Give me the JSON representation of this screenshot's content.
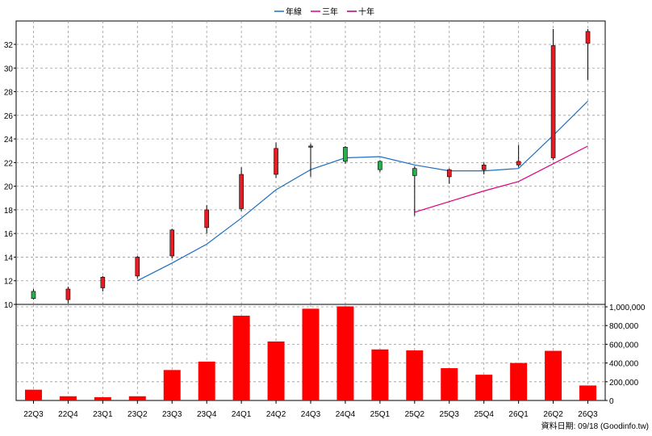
{
  "legend": [
    {
      "name": "年線",
      "color": "#1e6fbf"
    },
    {
      "name": "三年",
      "color": "#e0007a"
    },
    {
      "name": "十年",
      "color": "#b0006f"
    }
  ],
  "footer": {
    "source": "資料日期: 09/18  (Goodinfo.tw)"
  },
  "chart_data": [
    {
      "type": "candlestick",
      "categories": [
        "22Q3",
        "22Q4",
        "23Q1",
        "23Q2",
        "23Q3",
        "23Q4",
        "24Q1",
        "24Q2",
        "24Q3",
        "24Q4",
        "25Q1",
        "25Q2",
        "25Q3",
        "25Q4",
        "26Q1",
        "26Q2",
        "26Q3"
      ],
      "ylim": [
        10,
        33.5
      ],
      "yticks": [
        10,
        12,
        14,
        16,
        18,
        20,
        22,
        24,
        26,
        28,
        30,
        32
      ],
      "grid": true,
      "candles": [
        {
          "open": 10.5,
          "close": 11.1,
          "high": 11.3,
          "low": 10.4
        },
        {
          "open": 11.3,
          "close": 10.4,
          "high": 11.5,
          "low": 10.1
        },
        {
          "open": 12.3,
          "close": 11.4,
          "high": 12.4,
          "low": 11.1
        },
        {
          "open": 14.0,
          "close": 12.4,
          "high": 14.1,
          "low": 12.2
        },
        {
          "open": 16.3,
          "close": 14.1,
          "high": 16.4,
          "low": 13.9
        },
        {
          "open": 18.0,
          "close": 16.5,
          "high": 18.4,
          "low": 16.0
        },
        {
          "open": 21.0,
          "close": 18.1,
          "high": 21.6,
          "low": 17.9
        },
        {
          "open": 23.2,
          "close": 21.0,
          "high": 23.7,
          "low": 20.7
        },
        {
          "open": 23.4,
          "close": 23.3,
          "high": 23.6,
          "low": 20.8
        },
        {
          "open": 22.1,
          "close": 23.3,
          "high": 23.4,
          "low": 21.9
        },
        {
          "open": 21.4,
          "close": 22.1,
          "high": 22.2,
          "low": 21.2
        },
        {
          "open": 20.9,
          "close": 21.5,
          "high": 21.7,
          "low": 17.5
        },
        {
          "open": 21.4,
          "close": 20.8,
          "high": 21.5,
          "low": 20.2
        },
        {
          "open": 21.8,
          "close": 21.4,
          "high": 22.0,
          "low": 21.0
        },
        {
          "open": 22.1,
          "close": 21.8,
          "high": 23.5,
          "low": 21.6
        },
        {
          "open": 31.9,
          "close": 22.4,
          "high": 33.3,
          "low": 22.2
        },
        {
          "open": 33.1,
          "close": 32.1,
          "high": 33.3,
          "low": 29.0
        }
      ],
      "series": [
        {
          "name": "年線",
          "color": "#1e6fbf",
          "values": [
            null,
            null,
            null,
            12.0,
            13.5,
            15.1,
            17.3,
            19.7,
            21.4,
            22.4,
            22.5,
            21.8,
            21.3,
            21.3,
            21.5,
            24.3,
            27.2
          ]
        },
        {
          "name": "三年",
          "color": "#e0007a",
          "values": [
            null,
            null,
            null,
            null,
            null,
            null,
            null,
            null,
            null,
            null,
            null,
            17.8,
            18.7,
            19.6,
            20.4,
            21.9,
            23.4
          ]
        }
      ],
      "up_color": "#22b14c",
      "down_color": "#e51c23"
    },
    {
      "type": "bar",
      "categories": [
        "22Q3",
        "22Q4",
        "23Q1",
        "23Q2",
        "23Q3",
        "23Q4",
        "24Q1",
        "24Q2",
        "24Q3",
        "24Q4",
        "25Q1",
        "25Q2",
        "25Q3",
        "25Q4",
        "26Q1",
        "26Q2",
        "26Q3"
      ],
      "values": [
        115000,
        45000,
        35000,
        45000,
        325000,
        415000,
        905000,
        630000,
        980000,
        1005000,
        545000,
        535000,
        345000,
        275000,
        400000,
        530000,
        160000
      ],
      "ylim": [
        0,
        1000000
      ],
      "yticks": [
        "0",
        "200,000",
        "400,000",
        "600,000",
        "800,000",
        "1,000,000"
      ],
      "ytick_values": [
        0,
        200000,
        400000,
        600000,
        800000,
        1000000
      ],
      "color": "#ff0000",
      "grid": true
    }
  ]
}
